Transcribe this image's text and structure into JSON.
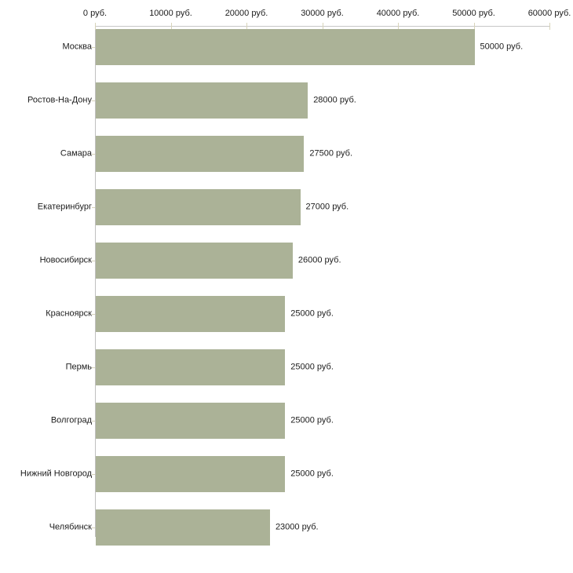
{
  "chart_data": {
    "type": "bar",
    "orientation": "horizontal",
    "title": "",
    "xlabel": "",
    "ylabel": "",
    "unit": "руб.",
    "xlim": [
      0,
      60000
    ],
    "grid": false,
    "legend": "none",
    "categories": [
      "Москва",
      "Ростов-На-Дону",
      "Самара",
      "Екатеринбург",
      "Новосибирск",
      "Красноярск",
      "Пермь",
      "Волгоград",
      "Нижний Новгород",
      "Челябинск"
    ],
    "values": [
      50000,
      28000,
      27500,
      27000,
      26000,
      25000,
      25000,
      25000,
      25000,
      23000
    ],
    "value_labels": [
      "50000 руб.",
      "28000 руб.",
      "27500 руб.",
      "27000 руб.",
      "26000 руб.",
      "25000 руб.",
      "25000 руб.",
      "25000 руб.",
      "25000 руб.",
      "23000 руб."
    ],
    "x_ticks": [
      {
        "value": 0,
        "label": "0 руб."
      },
      {
        "value": 10000,
        "label": "10000 руб."
      },
      {
        "value": 20000,
        "label": "20000 руб."
      },
      {
        "value": 30000,
        "label": "30000 руб."
      },
      {
        "value": 40000,
        "label": "40000 руб."
      },
      {
        "value": 50000,
        "label": "50000 руб."
      },
      {
        "value": 60000,
        "label": "60000 руб."
      }
    ],
    "colors": {
      "bar": "#abb297",
      "axis_line": "#c7c7c7",
      "baseline": "#c0c0c0",
      "tick": "#d8d4ba",
      "text": "#1c1c1c",
      "background": "#ffffff"
    }
  }
}
